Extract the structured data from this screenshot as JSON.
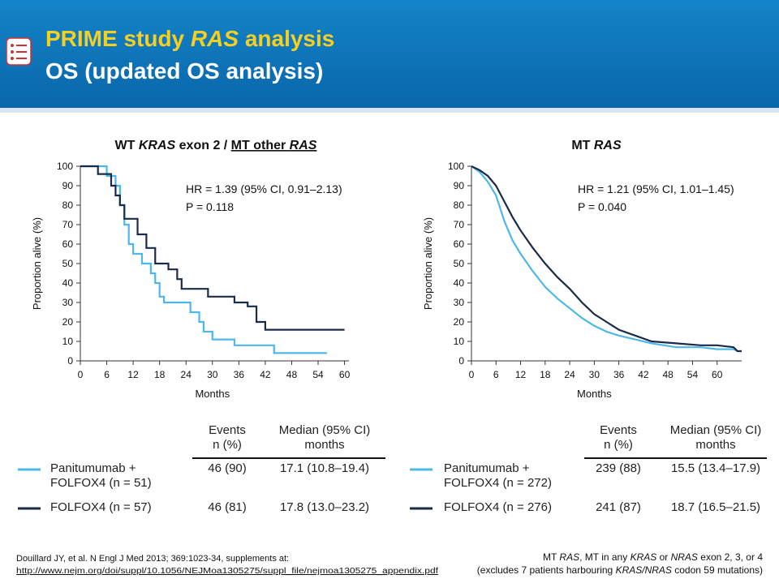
{
  "header": {
    "title": [
      {
        "text": "PRIME study "
      },
      {
        "text": "RAS",
        "italic": true
      },
      {
        "text": " analysis"
      }
    ],
    "subtitle": "OS (updated OS analysis)"
  },
  "chart_data": [
    {
      "type": "line",
      "title": [
        {
          "text": "WT "
        },
        {
          "text": "KRAS",
          "italic": true
        },
        {
          "text": " exon 2 / "
        },
        {
          "text": "MT other ",
          "underline": true
        },
        {
          "text": "RAS",
          "italic": true,
          "underline": true
        }
      ],
      "xlabel": "Months",
      "ylabel": "Proportion alive (%)",
      "annotations": [
        "HR = 1.39 (95% CI, 0.91–2.13)",
        "P = 0.118"
      ],
      "xlim": [
        0,
        61
      ],
      "ylim": [
        0,
        100
      ],
      "xticks": [
        0,
        6,
        12,
        18,
        24,
        30,
        36,
        42,
        48,
        54,
        60
      ],
      "yticks": [
        0,
        10,
        20,
        30,
        40,
        50,
        60,
        70,
        80,
        90,
        100
      ],
      "table_columns": [
        [
          "Events",
          "n (%)"
        ],
        [
          "Median (95% CI)",
          "months"
        ]
      ],
      "series": [
        {
          "name": "Panitumumab + FOLFOX4 (n = 51)",
          "color": "#4db8e8",
          "events": "46 (90)",
          "median": "17.1 (10.8–19.4)",
          "x": [
            0,
            6,
            6,
            8,
            8,
            9,
            9,
            10,
            10,
            11,
            11,
            12,
            12,
            14,
            14,
            16,
            16,
            17,
            17,
            18,
            18,
            19,
            19,
            25,
            25,
            27,
            27,
            28,
            28,
            30,
            30,
            35,
            35,
            44,
            44,
            56
          ],
          "values": [
            100,
            100,
            95,
            95,
            90,
            90,
            80,
            80,
            70,
            70,
            60,
            60,
            55,
            55,
            50,
            50,
            45,
            45,
            40,
            40,
            33,
            33,
            30,
            30,
            25,
            25,
            20,
            20,
            15,
            15,
            11,
            11,
            8,
            8,
            4,
            4
          ]
        },
        {
          "name": "FOLFOX4 (n = 57)",
          "color": "#1a2b4a",
          "events": "46 (81)",
          "median": "17.8 (13.0–23.2)",
          "x": [
            0,
            4,
            4,
            7,
            7,
            8,
            8,
            9,
            9,
            10,
            10,
            13,
            13,
            15,
            15,
            17,
            17,
            20,
            20,
            22,
            22,
            23,
            23,
            29,
            29,
            35,
            35,
            38,
            38,
            40,
            40,
            42,
            42,
            60
          ],
          "values": [
            100,
            100,
            96,
            96,
            90,
            90,
            85,
            85,
            80,
            80,
            73,
            73,
            65,
            65,
            58,
            58,
            50,
            50,
            47,
            47,
            42,
            42,
            37,
            37,
            33,
            33,
            30,
            30,
            28,
            28,
            20,
            20,
            16,
            16
          ]
        }
      ]
    },
    {
      "type": "line",
      "title": [
        {
          "text": "MT "
        },
        {
          "text": "RAS",
          "italic": true
        }
      ],
      "xlabel": "Months",
      "ylabel": "Proportion alive (%)",
      "annotations": [
        "HR = 1.21 (95% CI, 1.01–1.45)",
        "P = 0.040"
      ],
      "xlim": [
        0,
        66
      ],
      "ylim": [
        0,
        100
      ],
      "xticks": [
        0,
        6,
        12,
        18,
        24,
        30,
        36,
        42,
        48,
        54,
        60
      ],
      "yticks": [
        0,
        10,
        20,
        30,
        40,
        50,
        60,
        70,
        80,
        90,
        100
      ],
      "table_columns": [
        [
          "Events",
          "n (%)"
        ],
        [
          "Median (95% CI)",
          "months"
        ]
      ],
      "series": [
        {
          "name": "Panitumumab + FOLFOX4 (n = 272)",
          "color": "#4db8e8",
          "events": "239 (88)",
          "median": "15.5 (13.4–17.9)",
          "x": [
            0,
            2,
            4,
            6,
            8,
            10,
            12,
            15,
            18,
            21,
            24,
            27,
            30,
            33,
            36,
            40,
            44,
            50,
            56,
            60,
            64,
            65,
            66
          ],
          "values": [
            100,
            97,
            92,
            85,
            72,
            62,
            55,
            46,
            38,
            32,
            27,
            22,
            18,
            15,
            13,
            11,
            9,
            7,
            7,
            6,
            6,
            5,
            5
          ]
        },
        {
          "name": "FOLFOX4 (n = 276)",
          "color": "#1a2b4a",
          "events": "241 (87)",
          "median": "18.7 (16.5–21.5)",
          "x": [
            0,
            2,
            4,
            6,
            8,
            10,
            12,
            15,
            18,
            21,
            24,
            27,
            30,
            33,
            36,
            40,
            44,
            50,
            56,
            60,
            64,
            65,
            66
          ],
          "values": [
            100,
            98,
            95,
            90,
            82,
            74,
            67,
            58,
            50,
            43,
            37,
            30,
            24,
            20,
            16,
            13,
            10,
            9,
            8,
            8,
            7,
            5,
            5
          ]
        }
      ]
    }
  ],
  "footnotes": {
    "left": [
      {
        "text": "Douillard JY, et al. N Engl J Med 2013; 369:1023-34, supplements at:"
      }
    ],
    "url": "http://www.nejm.org/doi/suppl/10.1056/NEJMoa1305275/suppl_file/nejmoa1305275_appendix.pdf",
    "right1": [
      {
        "text": "MT "
      },
      {
        "text": "RAS",
        "italic": true
      },
      {
        "text": ", MT in any "
      },
      {
        "text": "KRAS",
        "italic": true
      },
      {
        "text": " or "
      },
      {
        "text": "NRAS",
        "italic": true
      },
      {
        "text": " exon 2, 3, or 4"
      }
    ],
    "right2": [
      {
        "text": "(excludes 7 patients harbouring "
      },
      {
        "text": "KRAS/NRAS",
        "italic": true
      },
      {
        "text": " codon 59 mutations)"
      }
    ]
  }
}
